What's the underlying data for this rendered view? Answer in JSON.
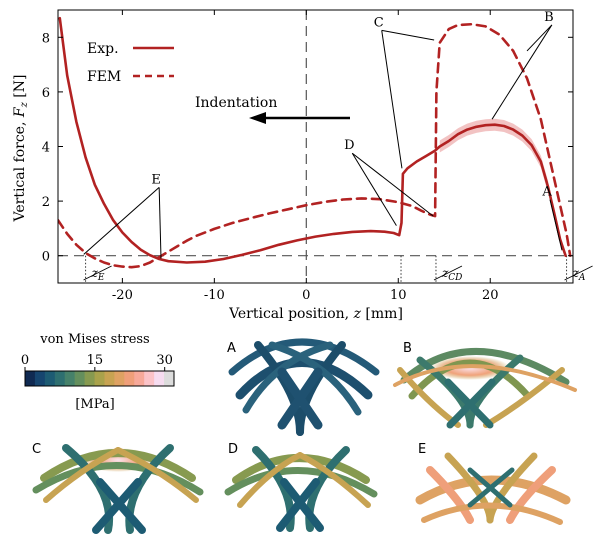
{
  "chart_data": {
    "type": "line",
    "ylabel_prefix": "Vertical force, ",
    "ylabel_var": "F",
    "ylabel_sub": "z",
    "ylabel_unit": " [N]",
    "xlabel_prefix": "Vertical position, ",
    "xlabel_var": "z",
    "xlabel_unit": " [mm]",
    "xlim": [
      -27,
      29
    ],
    "ylim": [
      -1,
      9
    ],
    "xticks": [
      -20,
      -10,
      0,
      10,
      20
    ],
    "xtick_labels": [
      "-20",
      "-10",
      "0",
      "10",
      "20"
    ],
    "yticks": [
      0,
      2,
      4,
      6,
      8
    ],
    "ytick_labels": [
      "0",
      "2",
      "4",
      "6",
      "8"
    ],
    "legend_position": "top-left",
    "series": [
      {
        "name": "Exp.",
        "style": "solid",
        "color": "#b22222",
        "points": [
          [
            -26.8,
            8.7
          ],
          [
            -26,
            6.6
          ],
          [
            -25,
            4.9
          ],
          [
            -24,
            3.6
          ],
          [
            -23,
            2.6
          ],
          [
            -22,
            1.9
          ],
          [
            -21,
            1.3
          ],
          [
            -20,
            0.85
          ],
          [
            -19,
            0.5
          ],
          [
            -18,
            0.22
          ],
          [
            -17,
            0.02
          ],
          [
            -16,
            -0.12
          ],
          [
            -15,
            -0.2
          ],
          [
            -13,
            -0.25
          ],
          [
            -11,
            -0.22
          ],
          [
            -9,
            -0.12
          ],
          [
            -7,
            0.03
          ],
          [
            -5,
            0.2
          ],
          [
            -3,
            0.4
          ],
          [
            -1,
            0.56
          ],
          [
            1,
            0.7
          ],
          [
            3,
            0.8
          ],
          [
            5,
            0.87
          ],
          [
            7,
            0.9
          ],
          [
            8.5,
            0.88
          ],
          [
            9.5,
            0.83
          ],
          [
            10.1,
            0.75
          ],
          [
            10.35,
            1.2
          ],
          [
            10.5,
            3.0
          ],
          [
            11,
            3.2
          ],
          [
            12,
            3.45
          ],
          [
            13,
            3.65
          ],
          [
            14,
            3.85
          ],
          [
            14.5,
            4.0
          ],
          [
            15.5,
            4.2
          ],
          [
            16.5,
            4.45
          ],
          [
            17.5,
            4.62
          ],
          [
            18.5,
            4.72
          ],
          [
            19.5,
            4.78
          ],
          [
            20.5,
            4.8
          ],
          [
            21.5,
            4.75
          ],
          [
            22.5,
            4.62
          ],
          [
            23.5,
            4.4
          ],
          [
            24.5,
            4.05
          ],
          [
            25.5,
            3.45
          ],
          [
            26.3,
            2.5
          ],
          [
            27,
            1.5
          ],
          [
            27.6,
            0.6
          ],
          [
            28.2,
            0.0
          ]
        ]
      },
      {
        "name": "FEM",
        "style": "dashed",
        "color": "#b22222",
        "points": [
          [
            -27,
            1.3
          ],
          [
            -26,
            0.8
          ],
          [
            -25,
            0.4
          ],
          [
            -24,
            0.1
          ],
          [
            -23,
            -0.1
          ],
          [
            -22,
            -0.25
          ],
          [
            -21,
            -0.35
          ],
          [
            -20,
            -0.4
          ],
          [
            -19,
            -0.42
          ],
          [
            -18,
            -0.38
          ],
          [
            -17,
            -0.25
          ],
          [
            -16,
            -0.05
          ],
          [
            -15,
            0.15
          ],
          [
            -14,
            0.35
          ],
          [
            -13,
            0.55
          ],
          [
            -12,
            0.72
          ],
          [
            -10,
            0.98
          ],
          [
            -8,
            1.2
          ],
          [
            -6,
            1.38
          ],
          [
            -4,
            1.55
          ],
          [
            -2,
            1.7
          ],
          [
            0,
            1.85
          ],
          [
            2,
            1.97
          ],
          [
            4,
            2.06
          ],
          [
            6,
            2.1
          ],
          [
            8,
            2.07
          ],
          [
            10,
            1.96
          ],
          [
            11.5,
            1.82
          ],
          [
            12.5,
            1.65
          ],
          [
            13.5,
            1.5
          ],
          [
            14.0,
            1.45
          ],
          [
            14.15,
            6.0
          ],
          [
            14.5,
            7.8
          ],
          [
            15.5,
            8.3
          ],
          [
            16.5,
            8.45
          ],
          [
            18,
            8.48
          ],
          [
            19.5,
            8.4
          ],
          [
            21,
            8.1
          ],
          [
            22.5,
            7.5
          ],
          [
            24,
            6.5
          ],
          [
            25.5,
            5.0
          ],
          [
            26.5,
            3.5
          ],
          [
            27.5,
            2.0
          ],
          [
            28.3,
            0.8
          ],
          [
            28.7,
            0.0
          ]
        ]
      }
    ],
    "band": {
      "color": "#f0b9b9",
      "x_start": 14.5,
      "x_end": 26.5,
      "half_width": 0.22
    },
    "reference_lines": [
      {
        "type": "horizontal",
        "y": 0
      },
      {
        "type": "vertical",
        "x": 0
      }
    ],
    "markers": [
      {
        "x": -24,
        "label": "z",
        "sub": "E"
      },
      {
        "x": 10.3,
        "label": "",
        "sub": ""
      },
      {
        "x": 14.1,
        "label": "z",
        "sub": "CD"
      },
      {
        "x": 28.3,
        "label": "z",
        "sub": "A"
      }
    ],
    "annotations": [
      {
        "text": "A",
        "x": 26.5,
        "y": 2.2
      },
      {
        "text": "B",
        "x": 26.7,
        "y": 8.6
      },
      {
        "text": "C",
        "x": 8.2,
        "y": 8.4
      },
      {
        "text": "D",
        "x": 5.0,
        "y": 3.9
      },
      {
        "text": "E",
        "x": -16,
        "y": 2.65
      }
    ],
    "arrow_text": "Indentation"
  },
  "colorbar": {
    "title": "von Mises stress",
    "tick_labels": [
      "0",
      "15",
      "30"
    ],
    "tick_values": [
      0,
      15,
      30
    ],
    "max_value": 32,
    "unit": "[MPa]",
    "colors": [
      "#102a52",
      "#16456f",
      "#1d5b73",
      "#2e6f70",
      "#46816a",
      "#648f5d",
      "#879a50",
      "#a9a24b",
      "#c7a352",
      "#dea263",
      "#ef9f7a",
      "#f7a99a",
      "#fbc3c8",
      "#f6dcf0",
      "#dcdcdc"
    ]
  },
  "panels": {
    "labels": [
      "A",
      "B",
      "C",
      "D",
      "E"
    ]
  }
}
